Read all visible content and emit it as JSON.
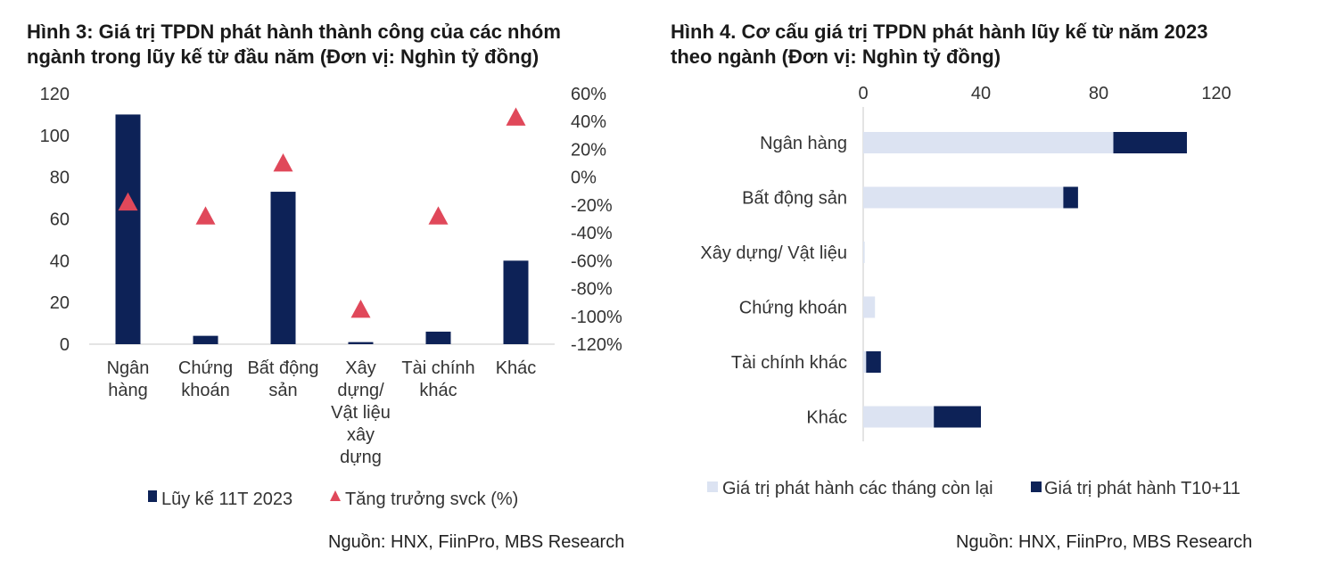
{
  "left": {
    "title_line1": "Hình 3: Giá trị TPDN phát hành thành công của các nhóm",
    "title_line2": "ngành trong lũy kế từ đầu năm (Đơn vị: Nghìn tỷ đồng)",
    "source": "Nguồn: HNX, FiinPro, MBS Research"
  },
  "right": {
    "title_line1": "Hình 4. Cơ cấu giá trị TPDN phát hành lũy kế từ năm 2023",
    "title_line2": "theo ngành (Đơn vị: Nghìn tỷ đồng)",
    "source": "Nguồn: HNX, FiinPro, MBS Research"
  },
  "chart_data": [
    {
      "type": "bar",
      "categories": [
        [
          "Ngân",
          "hàng"
        ],
        [
          "Chứng",
          "khoán"
        ],
        [
          "Bất động",
          "sản"
        ],
        [
          "Xây",
          "dựng/",
          "Vật liệu",
          "xây",
          "dựng"
        ],
        [
          "Tài chính",
          "khác"
        ],
        [
          "Khác"
        ]
      ],
      "series": [
        {
          "name": "Lũy kế 11T 2023",
          "type": "bar",
          "axis": "left",
          "values": [
            110,
            4,
            73,
            1,
            6,
            40
          ],
          "color": "#0d2257"
        },
        {
          "name": "Tăng trưởng svck (%)",
          "type": "scatter",
          "marker": "triangle",
          "axis": "right",
          "values": [
            -18,
            -28,
            10,
            -95,
            -28,
            43
          ],
          "color": "#e0485a"
        }
      ],
      "y_left": {
        "min": 0,
        "max": 120,
        "ticks": [
          0,
          20,
          40,
          60,
          80,
          100,
          120
        ]
      },
      "y_right": {
        "min": -120,
        "max": 60,
        "ticks": [
          60,
          40,
          20,
          0,
          -20,
          -40,
          -60,
          -80,
          -100,
          -120
        ],
        "tick_labels": [
          "60%",
          "40%",
          "20%",
          "0%",
          "-20%",
          "-40%",
          "-60%",
          "-80%",
          "-100%",
          "-120%"
        ]
      },
      "grid": false,
      "legend": "bottom"
    },
    {
      "type": "bar",
      "orientation": "horizontal",
      "stacked": true,
      "categories": [
        "Ngân hàng",
        "Bất động sản",
        "Xây dựng/ Vật liệu",
        "Chứng khoán",
        "Tài chính khác",
        "Khác"
      ],
      "series": [
        {
          "name": "Giá trị phát hành các tháng còn lại",
          "values": [
            85,
            68,
            0.5,
            4,
            1,
            24
          ],
          "color": "#dce3f2"
        },
        {
          "name": "Giá trị phát hành T10+11",
          "values": [
            25,
            5,
            0,
            0,
            5,
            16
          ],
          "color": "#0d2257"
        }
      ],
      "x_axis": {
        "min": 0,
        "max": 120,
        "ticks": [
          0,
          40,
          80,
          120
        ],
        "position": "top"
      },
      "grid": false,
      "legend": "bottom"
    }
  ]
}
